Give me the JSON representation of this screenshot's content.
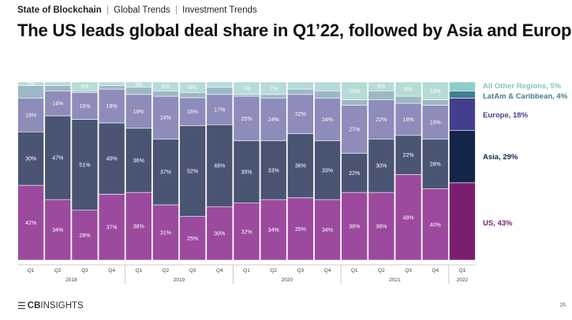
{
  "header": {
    "crumb_main": "State of Blockchain",
    "crumb_2": "Global Trends",
    "crumb_3": "Investment Trends",
    "separator": "|"
  },
  "title": "The US leads global deal share in Q1’22, followed by Asia and Europe",
  "footer": {
    "logo_text": "CBINSIGHTS",
    "logo_bold": "CB",
    "logo_rest": "INSIGHTS",
    "logo_mark": "☰",
    "page_number": "26"
  },
  "chart_data": {
    "type": "bar",
    "stacked": true,
    "orientation": "vertical",
    "ylim": [
      0,
      100
    ],
    "grid": false,
    "legend_placement": "right",
    "categories": [
      "Q1",
      "Q2",
      "Q3",
      "Q4",
      "Q1",
      "Q2",
      "Q3",
      "Q4",
      "Q1",
      "Q2",
      "Q3",
      "Q4",
      "Q1",
      "Q2",
      "Q3",
      "Q4",
      "Q1"
    ],
    "years": [
      {
        "label": "2018",
        "span": 4
      },
      {
        "label": "2019",
        "span": 4
      },
      {
        "label": "2020",
        "span": 4
      },
      {
        "label": "2021",
        "span": 4
      },
      {
        "label": "2022",
        "span": 1
      }
    ],
    "highlight_last_bar": true,
    "series": [
      {
        "name": "US",
        "color": "#9c4a9e",
        "last_color": "#7a1f6f",
        "values": [
          42,
          34,
          28,
          37,
          38,
          31,
          25,
          30,
          32,
          34,
          35,
          34,
          38,
          38,
          48,
          40,
          43
        ],
        "labels": [
          "42%",
          "34%",
          "28%",
          "37%",
          "38%",
          "31%",
          "25%",
          "30%",
          "32%",
          "34%",
          "35%",
          "34%",
          "38%",
          "38%",
          "48%",
          "40%",
          ""
        ]
      },
      {
        "name": "Asia",
        "color": "#4a5573",
        "last_color": "#152549",
        "values": [
          30,
          47,
          51,
          40,
          36,
          37,
          52,
          46,
          35,
          33,
          36,
          33,
          22,
          30,
          22,
          28,
          29
        ],
        "labels": [
          "30%",
          "47%",
          "51%",
          "40%",
          "36%",
          "37%",
          "52%",
          "46%",
          "35%",
          "33%",
          "36%",
          "33%",
          "22%",
          "30%",
          "22%",
          "28%",
          ""
        ]
      },
      {
        "name": "Europe",
        "color": "#8e8cba",
        "last_color": "#433f8e",
        "values": [
          19,
          14,
          15,
          19,
          19,
          24,
          16,
          17,
          25,
          24,
          22,
          24,
          27,
          22,
          18,
          19,
          18
        ],
        "labels": [
          "19%",
          "14%",
          "15%",
          "19%",
          "19%",
          "24%",
          "16%",
          "17%",
          "25%",
          "24%",
          "22%",
          "24%",
          "27%",
          "22%",
          "18%",
          "19%",
          ""
        ]
      },
      {
        "name": "LatAm & Caribbean",
        "color": "#9db8c5",
        "last_color": "#3f7f90",
        "values": [
          7,
          3,
          1,
          2,
          4,
          3,
          3,
          4,
          1,
          2,
          3,
          4,
          3,
          5,
          4,
          3,
          4
        ],
        "labels": [
          "",
          "",
          "",
          "",
          "",
          "",
          "",
          "",
          "",
          "",
          "",
          "",
          "",
          "",
          "",
          "",
          ""
        ]
      },
      {
        "name": "All Other Regions",
        "color": "#b7dcd7",
        "last_color": "#8ccfc6",
        "values": [
          2,
          2,
          5,
          2,
          3,
          5,
          6,
          3,
          7,
          7,
          4,
          5,
          10,
          5,
          8,
          10,
          5
        ],
        "labels": [
          "2%",
          "",
          "5%",
          "",
          "3%",
          "5%",
          "6%",
          "",
          "7%",
          "7%",
          "",
          "",
          "10%",
          "5%",
          "8%",
          "10%",
          ""
        ]
      }
    ],
    "legend": [
      {
        "text": "All Other Regions, 5%",
        "color": "#7cc8be"
      },
      {
        "text": "LatAm & Caribbean, 4%",
        "color": "#3f7f90"
      },
      {
        "text": "Europe, 18%",
        "color": "#433f8e"
      },
      {
        "text": "Asia, 29%",
        "color": "#152549"
      },
      {
        "text": "US, 43%",
        "color": "#7a1f6f"
      }
    ]
  }
}
